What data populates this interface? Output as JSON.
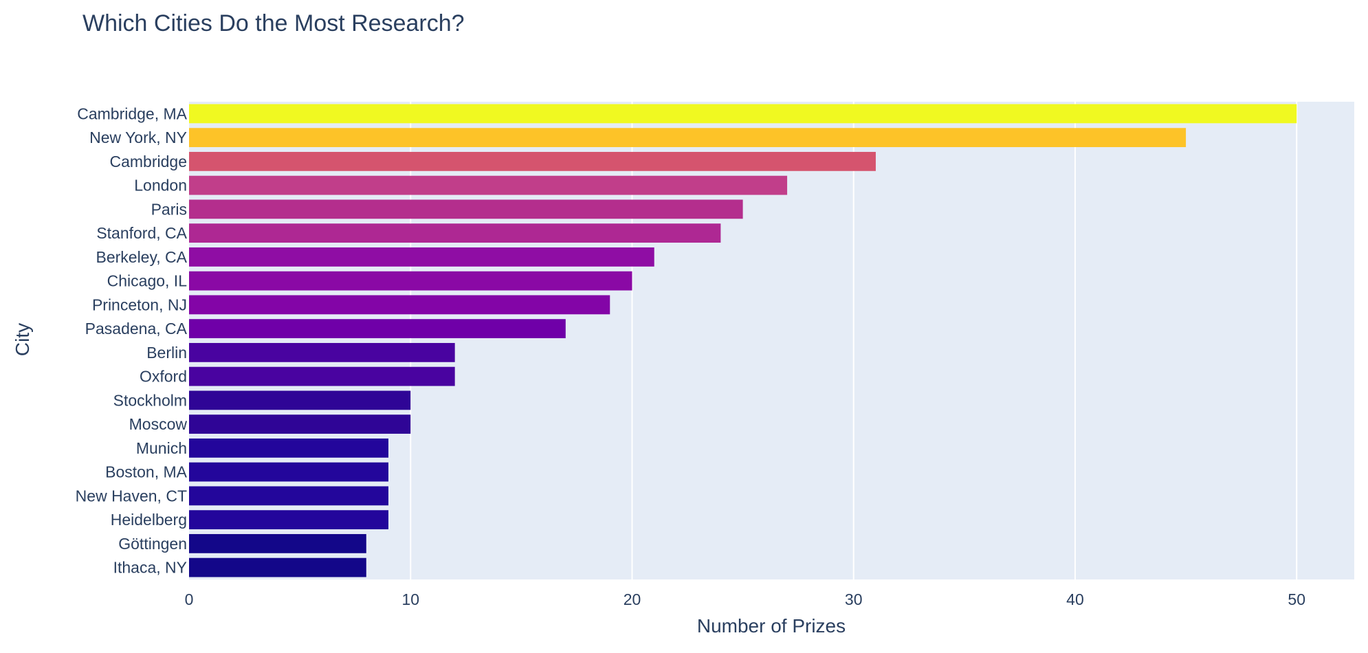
{
  "chart_data": {
    "type": "bar",
    "orientation": "horizontal",
    "title": "Which Cities Do the Most Research?",
    "xlabel": "Number of Prizes",
    "ylabel": "City",
    "xlim": [
      0,
      52.6
    ],
    "x_ticks": [
      0,
      10,
      20,
      30,
      40,
      50
    ],
    "grid": true,
    "legend": "none",
    "colorscale": "plasma",
    "plot_background": "#e5ecf6",
    "text_color": "#2a3f5f",
    "categories": [
      "Cambridge, MA",
      "New York, NY",
      "Cambridge",
      "London",
      "Paris",
      "Stanford, CA",
      "Berkeley, CA",
      "Chicago, IL",
      "Princeton, NJ",
      "Pasadena, CA",
      "Berlin",
      "Oxford",
      "Stockholm",
      "Moscow",
      "Munich",
      "Boston, MA",
      "New Haven, CT",
      "Heidelberg",
      "Göttingen",
      "Ithaca, NY"
    ],
    "values": [
      50,
      45,
      31,
      27,
      25,
      24,
      21,
      20,
      19,
      17,
      12,
      12,
      10,
      10,
      9,
      9,
      9,
      9,
      8,
      8
    ],
    "colors": [
      "#f0f921",
      "#fdc328",
      "#d5546e",
      "#c13e8a",
      "#b42e8d",
      "#ae2893",
      "#8f0da4",
      "#8a09a5",
      "#8305a7",
      "#6f00a8",
      "#4903a0",
      "#4903a0",
      "#2f0596",
      "#2f0596",
      "#23069b",
      "#23069b",
      "#23069b",
      "#23069b",
      "#130789",
      "#130789"
    ]
  }
}
